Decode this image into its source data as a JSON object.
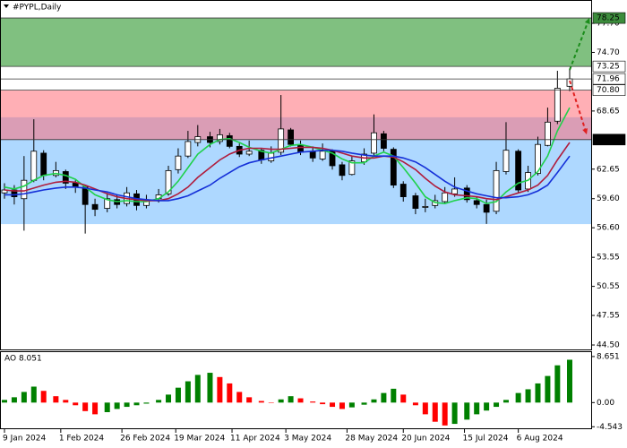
{
  "chart_data": [
    {
      "type": "candlestick",
      "title": "#PYPL,Daily",
      "x": [
        "2024-01-09",
        "2024-01-13",
        "2024-01-17",
        "2024-01-21",
        "2024-01-25",
        "2024-01-30",
        "2024-02-03",
        "2024-02-07",
        "2024-02-11",
        "2024-02-15",
        "2024-02-20",
        "2024-02-24",
        "2024-02-28",
        "2024-03-03",
        "2024-03-07",
        "2024-03-12",
        "2024-03-16",
        "2024-03-20",
        "2024-03-24",
        "2024-03-28",
        "2024-04-02",
        "2024-04-06",
        "2024-04-10",
        "2024-04-14",
        "2024-04-18",
        "2024-04-23",
        "2024-04-27",
        "2024-05-01",
        "2024-05-05",
        "2024-05-09",
        "2024-05-14",
        "2024-05-18",
        "2024-05-22",
        "2024-05-26",
        "2024-05-30",
        "2024-06-04",
        "2024-06-08",
        "2024-06-12",
        "2024-06-16",
        "2024-06-20",
        "2024-06-25",
        "2024-06-29",
        "2024-07-03",
        "2024-07-07",
        "2024-07-11",
        "2024-07-16",
        "2024-07-20",
        "2024-07-24",
        "2024-07-28",
        "2024-08-01",
        "2024-08-06",
        "2024-08-10",
        "2024-08-14",
        "2024-08-18",
        "2024-08-22",
        "2024-08-27"
      ],
      "open": [
        60.2,
        60.5,
        59.6,
        61.5,
        64.3,
        62.0,
        62.4,
        61.2,
        60.8,
        59.0,
        58.6,
        59.5,
        59.1,
        60.1,
        58.9,
        59.6,
        60.1,
        62.6,
        64.0,
        65.4,
        66.0,
        65.5,
        66.1,
        65.0,
        64.2,
        64.6,
        63.5,
        64.4,
        66.7,
        65.1,
        64.5,
        63.7,
        64.5,
        63.1,
        62.1,
        63.4,
        64.3,
        66.3,
        64.7,
        61.1,
        59.9,
        58.7,
        58.9,
        59.3,
        60.1,
        60.7,
        59.4,
        59.0,
        58.3,
        62.4,
        64.5,
        60.6,
        62.2,
        65.1,
        67.6,
        71.2
      ],
      "high": [
        61.2,
        61.0,
        64.0,
        67.8,
        64.6,
        63.4,
        62.6,
        61.5,
        61.0,
        59.6,
        60.2,
        60.0,
        60.8,
        60.5,
        60.0,
        60.6,
        63.0,
        64.8,
        66.6,
        67.2,
        66.5,
        66.8,
        66.4,
        65.3,
        65.6,
        64.8,
        65.0,
        70.3,
        66.9,
        65.6,
        65.0,
        65.3,
        64.7,
        63.4,
        64.0,
        64.8,
        68.3,
        66.6,
        64.9,
        61.4,
        60.2,
        59.6,
        60.0,
        60.8,
        61.8,
        61.0,
        59.8,
        59.5,
        63.4,
        67.5,
        64.7,
        63.0,
        66.0,
        69.0,
        72.8,
        73.0
      ],
      "low": [
        59.6,
        59.0,
        56.3,
        61.3,
        61.5,
        61.8,
        60.6,
        60.2,
        56.0,
        57.8,
        58.2,
        58.6,
        58.8,
        58.4,
        58.6,
        59.2,
        59.9,
        62.2,
        63.8,
        65.0,
        64.9,
        65.2,
        64.8,
        63.9,
        64.0,
        63.2,
        63.3,
        64.1,
        65.0,
        64.1,
        63.4,
        63.5,
        62.6,
        61.5,
        62.0,
        63.1,
        64.0,
        64.5,
        60.7,
        59.3,
        58.0,
        58.2,
        58.6,
        59.1,
        59.8,
        59.2,
        58.6,
        57.0,
        58.0,
        62.1,
        60.2,
        60.3,
        62.0,
        65.0,
        67.3,
        70.7
      ],
      "close": [
        60.5,
        59.8,
        61.5,
        64.5,
        62.0,
        62.5,
        61.2,
        60.8,
        59.0,
        58.5,
        59.6,
        59.0,
        60.2,
        58.9,
        59.5,
        60.0,
        62.5,
        64.0,
        65.5,
        66.0,
        65.4,
        66.2,
        65.0,
        64.2,
        64.5,
        63.6,
        64.3,
        66.8,
        65.2,
        64.4,
        63.8,
        64.5,
        63.0,
        62.0,
        63.5,
        64.2,
        66.4,
        64.8,
        61.0,
        59.8,
        58.6,
        58.8,
        59.4,
        60.2,
        60.6,
        59.5,
        59.0,
        58.2,
        62.5,
        64.6,
        60.5,
        62.3,
        65.2,
        67.5,
        71.0,
        71.96
      ],
      "up_color": "#ffffff",
      "down_color": "#000000",
      "series": [
        {
          "color": "#1fd14a",
          "values": [
            60.8,
            60.6,
            60.9,
            61.5,
            62.0,
            62.2,
            62.0,
            61.6,
            60.8,
            60.0,
            59.5,
            59.3,
            59.4,
            59.3,
            59.3,
            59.6,
            60.3,
            61.4,
            62.8,
            64.2,
            65.2,
            65.7,
            65.8,
            65.4,
            64.9,
            64.5,
            64.3,
            64.7,
            65.1,
            65.2,
            64.9,
            64.6,
            64.3,
            63.7,
            63.3,
            63.3,
            64.0,
            64.4,
            64.0,
            62.8,
            61.2,
            59.8,
            59.2,
            59.1,
            59.4,
            59.7,
            59.6,
            59.1,
            59.3,
            60.3,
            61.2,
            61.5,
            62.4,
            64.0,
            66.6,
            69.0
          ]
        },
        {
          "color": "#b01c3c",
          "values": [
            60.5,
            60.4,
            60.4,
            60.7,
            61.0,
            61.3,
            61.4,
            61.3,
            61.0,
            60.6,
            60.1,
            59.8,
            59.6,
            59.5,
            59.4,
            59.4,
            59.6,
            60.1,
            60.8,
            61.8,
            62.8,
            63.6,
            64.2,
            64.6,
            64.8,
            64.8,
            64.7,
            64.7,
            64.8,
            64.9,
            64.9,
            64.8,
            64.6,
            64.3,
            64.0,
            63.8,
            63.8,
            64.0,
            63.9,
            63.4,
            62.6,
            61.7,
            60.9,
            60.3,
            60.0,
            59.9,
            59.8,
            59.6,
            59.5,
            59.8,
            60.2,
            60.5,
            61.0,
            62.0,
            63.6,
            65.4
          ]
        },
        {
          "color": "#1530d8",
          "values": [
            60.0,
            60.0,
            60.1,
            60.3,
            60.5,
            60.7,
            60.8,
            60.8,
            60.7,
            60.5,
            60.3,
            60.0,
            59.8,
            59.6,
            59.5,
            59.4,
            59.4,
            59.6,
            59.9,
            60.4,
            61.0,
            61.7,
            62.3,
            62.9,
            63.3,
            63.6,
            63.8,
            64.0,
            64.2,
            64.4,
            64.5,
            64.6,
            64.6,
            64.5,
            64.3,
            64.1,
            64.0,
            64.0,
            64.0,
            63.8,
            63.4,
            62.8,
            62.1,
            61.4,
            60.8,
            60.4,
            60.1,
            59.9,
            59.7,
            59.7,
            59.8,
            60.0,
            60.4,
            61.0,
            62.3,
            64.0
          ]
        }
      ],
      "zones": [
        {
          "from": 56.98,
          "to": 68.0,
          "color": "rgba(120,190,255,0.6)"
        },
        {
          "from": 65.7,
          "to": 70.8,
          "color": "rgba(255,110,120,0.55)"
        },
        {
          "from": 73.25,
          "to": 78.25,
          "color": "#80c080"
        }
      ],
      "levels": [
        {
          "value": 78.25,
          "color": "#3c8c3c"
        },
        {
          "value": 73.25,
          "color": "#ffffff"
        },
        {
          "value": 71.96,
          "color": "#ffffff"
        },
        {
          "value": 70.8,
          "label": "70.80",
          "color": "#ffffff"
        },
        {
          "value": 65.7,
          "label": "65.70",
          "color": "#000000"
        }
      ],
      "ylim": [
        44.04,
        79.83
      ],
      "yticks": [
        {
          "value": 77.7,
          "label": "77.70"
        },
        {
          "value": 74.7,
          "label": "74.70"
        },
        68.65,
        62.65,
        {
          "value": 59.6,
          "label": "59.60"
        },
        {
          "value": 56.6,
          "label": "56.60"
        },
        53.55,
        50.55,
        47.55,
        {
          "value": 44.5,
          "label": "44.50"
        }
      ],
      "xlim": [
        "2024-01-09",
        "2024-08-27"
      ],
      "xticks": [
        {
          "value": "2024-01-09",
          "label": "9 Jan 2024"
        },
        {
          "value": "2024-02-01",
          "label": "1 Feb 2024"
        },
        {
          "value": "2024-02-26",
          "label": "26 Feb 2024"
        },
        {
          "value": "2024-03-19",
          "label": "19 Mar 2024"
        },
        {
          "value": "2024-04-11",
          "label": "11 Apr 2024"
        },
        {
          "value": "2024-05-03",
          "label": "3 May 2024"
        },
        {
          "value": "2024-05-28",
          "label": "28 May 2024"
        },
        {
          "value": "2024-06-20",
          "label": "20 Jun 2024"
        },
        {
          "value": "2024-07-15",
          "label": "15 Jul 2024"
        },
        {
          "value": "2024-08-06",
          "label": "6 Aug 2024"
        }
      ]
    },
    {
      "type": "bar",
      "title": "AO 8.051",
      "values": [
        0.5,
        1.0,
        2.0,
        3.0,
        2.2,
        1.2,
        0.5,
        -0.5,
        -1.6,
        -2.2,
        -1.8,
        -1.2,
        -0.8,
        -0.5,
        -0.2,
        0.5,
        1.5,
        2.8,
        4.0,
        5.2,
        5.6,
        4.8,
        3.6,
        2.0,
        1.0,
        0.3,
        0.0,
        0.6,
        1.2,
        0.8,
        0.2,
        -0.3,
        -0.8,
        -1.2,
        -0.9,
        -0.4,
        0.6,
        1.8,
        2.6,
        1.5,
        -0.5,
        -2.2,
        -3.6,
        -4.3,
        -4.0,
        -3.2,
        -2.2,
        -1.5,
        -0.8,
        0.5,
        1.8,
        2.5,
        3.6,
        5.0,
        7.0,
        8.051
      ],
      "up_color": "#008000",
      "down_color": "#ff0000",
      "ylim": [
        -4.83,
        9.48
      ],
      "yticks": [
        8.651,
        {
          "value": 0,
          "label": "0.00"
        },
        -4.543
      ]
    }
  ]
}
